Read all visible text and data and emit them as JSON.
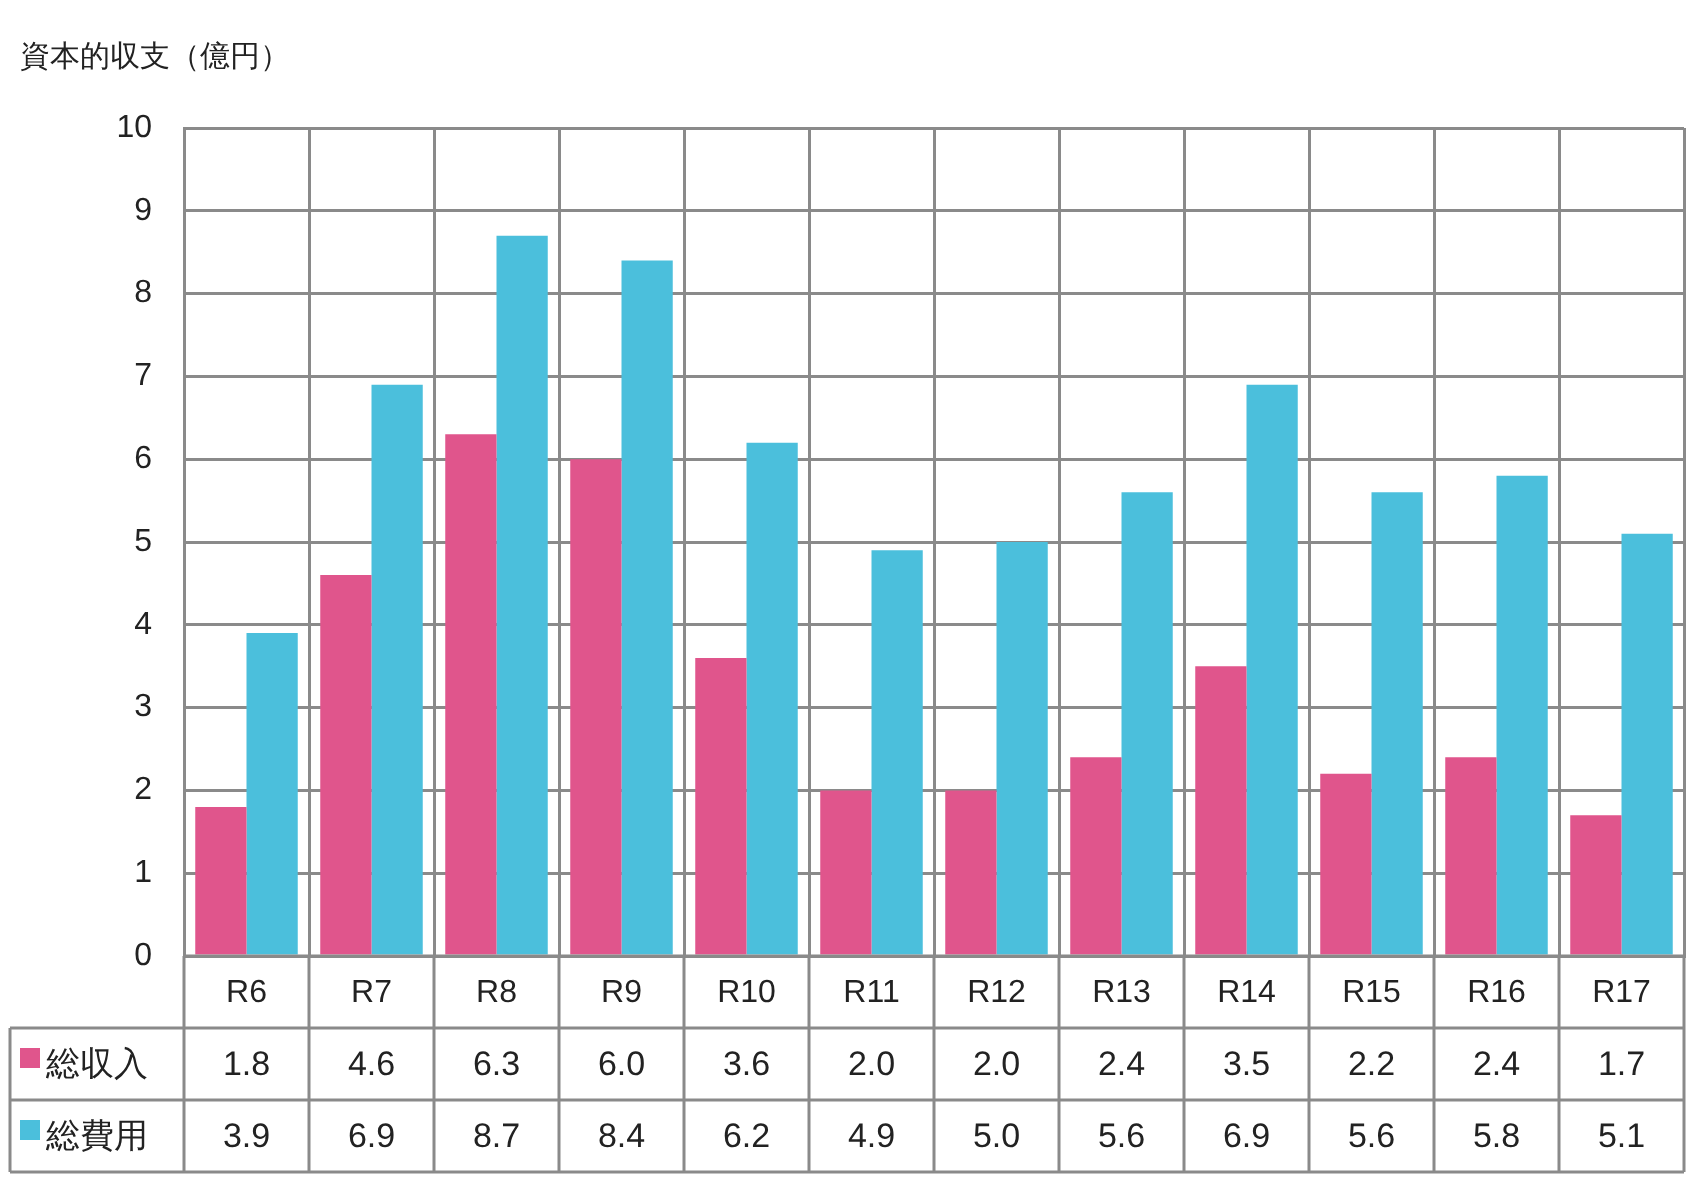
{
  "chart_data": {
    "type": "bar",
    "title": "資本的収支（億円）",
    "categories": [
      "R6",
      "R7",
      "R8",
      "R9",
      "R10",
      "R11",
      "R12",
      "R13",
      "R14",
      "R15",
      "R16",
      "R17"
    ],
    "series": [
      {
        "name": "総収入",
        "color": "#e0558c",
        "values": [
          1.8,
          4.6,
          6.3,
          6.0,
          3.6,
          2.0,
          2.0,
          2.4,
          3.5,
          2.2,
          2.4,
          1.7
        ],
        "value_labels": [
          "1.8",
          "4.6",
          "6.3",
          "6.0",
          "3.6",
          "2.0",
          "2.0",
          "2.4",
          "3.5",
          "2.2",
          "2.4",
          "1.7"
        ]
      },
      {
        "name": "総費用",
        "color": "#4bbfdc",
        "values": [
          3.9,
          6.9,
          8.7,
          8.4,
          6.2,
          4.9,
          5.0,
          5.6,
          6.9,
          5.6,
          5.8,
          5.1
        ],
        "value_labels": [
          "3.9",
          "6.9",
          "8.7",
          "8.4",
          "6.2",
          "4.9",
          "5.0",
          "5.6",
          "6.9",
          "5.6",
          "5.8",
          "5.1"
        ]
      }
    ],
    "ylim": [
      0,
      10
    ],
    "yticks": [
      0,
      1,
      2,
      3,
      4,
      5,
      6,
      7,
      8,
      9,
      10
    ],
    "grid": true,
    "legend": "bottom left"
  }
}
